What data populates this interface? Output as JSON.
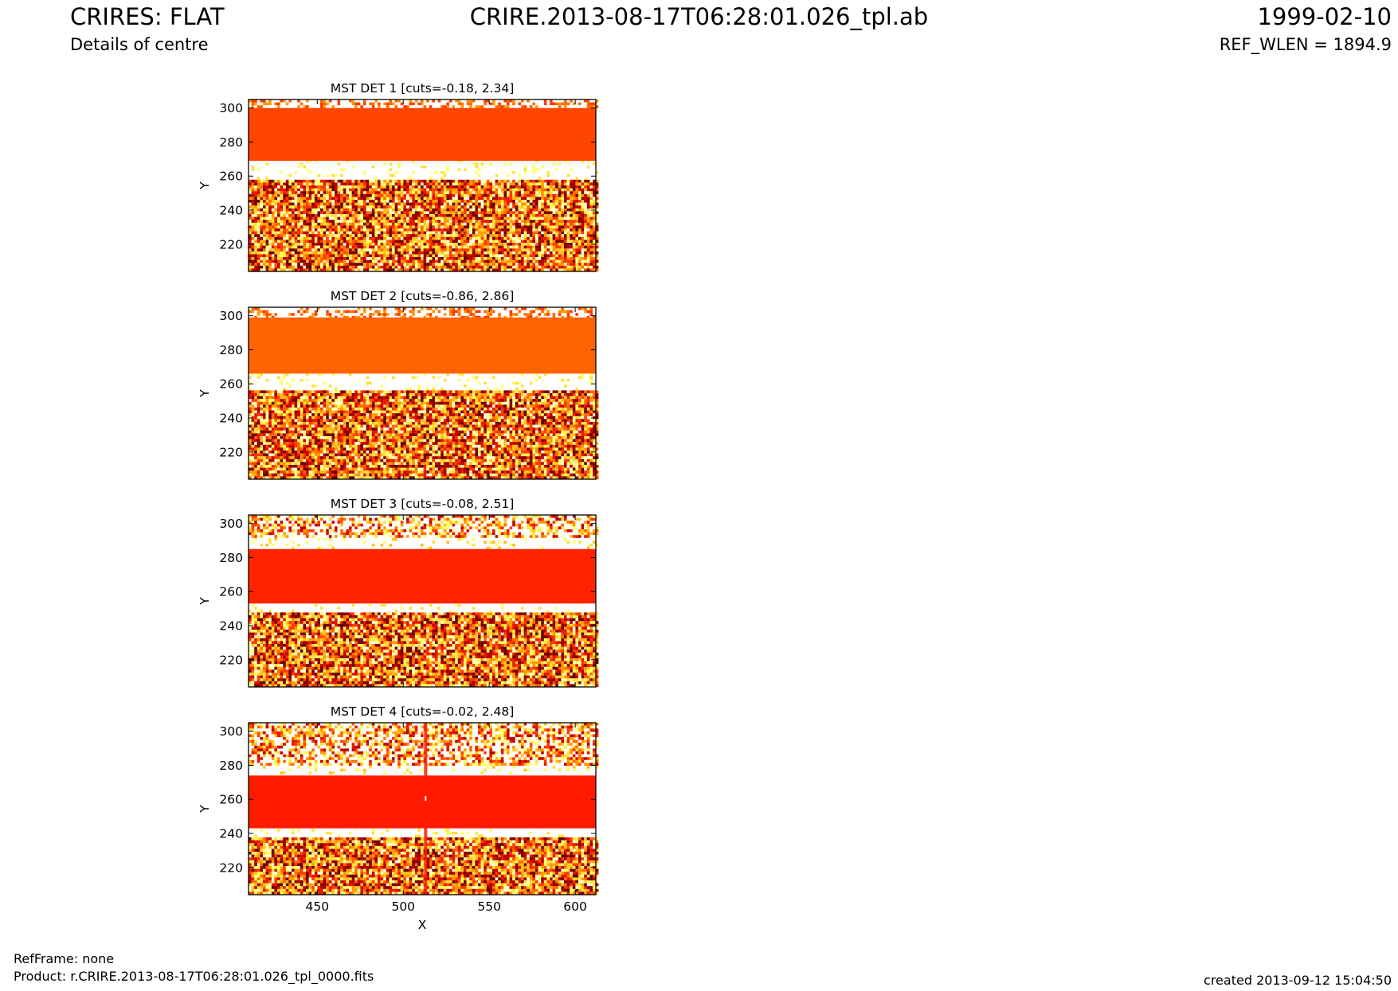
{
  "header": {
    "title": "CRIRES: FLAT",
    "subtitle": "Details of centre",
    "file": "CRIRE.2013-08-17T06:28:01.026_tpl.ab",
    "date": "1999-02-10",
    "ref_wlen": "REF_WLEN = 1894.9"
  },
  "footer": {
    "refframe": "RefFrame: none",
    "product": "Product: r.CRIRE.2013-08-17T06:28:01.026_tpl_0000.fits",
    "created": "created 2013-09-12 15:04:50"
  },
  "chart_data": [
    {
      "type": "heatmap",
      "title": "MST DET 1 [cuts=-0.18, 2.34]",
      "ylabel": "Y",
      "xlim": [
        410,
        612
      ],
      "ylim": [
        204,
        305
      ],
      "x_ticks": [
        450,
        500,
        550,
        600
      ],
      "y_ticks": [
        220,
        240,
        260,
        280,
        300
      ],
      "x_tick_labels_visible": false,
      "band_color": "#ff4500",
      "band_y": [
        269,
        300
      ],
      "white_gap_y": [
        258,
        269
      ],
      "noise_upper_y": null,
      "columns_defect": false
    },
    {
      "type": "heatmap",
      "title": "MST DET 2 [cuts=-0.86, 2.86]",
      "ylabel": "Y",
      "xlim": [
        410,
        612
      ],
      "ylim": [
        204,
        305
      ],
      "x_ticks": [
        450,
        500,
        550,
        600
      ],
      "y_ticks": [
        220,
        240,
        260,
        280,
        300
      ],
      "x_tick_labels_visible": false,
      "band_color": "#ff6400",
      "band_y": [
        266,
        299
      ],
      "white_gap_y": [
        257,
        266
      ],
      "noise_upper_y": null,
      "columns_defect": false
    },
    {
      "type": "heatmap",
      "title": "MST DET 3 [cuts=-0.08, 2.51]",
      "ylabel": "Y",
      "xlim": [
        410,
        612
      ],
      "ylim": [
        204,
        305
      ],
      "x_ticks": [
        450,
        500,
        550,
        600
      ],
      "y_ticks": [
        220,
        240,
        260,
        280,
        300
      ],
      "x_tick_labels_visible": false,
      "band_color": "#ff2400",
      "band_y": [
        253,
        285
      ],
      "white_gap_y": [
        248,
        253
      ],
      "noise_upper_y": [
        290,
        305
      ],
      "columns_defect": false
    },
    {
      "type": "heatmap",
      "title": "MST DET 4 [cuts=-0.02, 2.48]",
      "xlabel": "X",
      "ylabel": "Y",
      "xlim": [
        410,
        612
      ],
      "ylim": [
        204,
        305
      ],
      "x_ticks": [
        450,
        500,
        550,
        600
      ],
      "y_ticks": [
        220,
        240,
        260,
        280,
        300
      ],
      "x_tick_labels_visible": true,
      "band_color": "#ff1a00",
      "band_y": [
        243,
        274
      ],
      "white_gap_y": [
        238,
        243
      ],
      "noise_upper_y": [
        283,
        305
      ],
      "columns_defect": true
    }
  ]
}
